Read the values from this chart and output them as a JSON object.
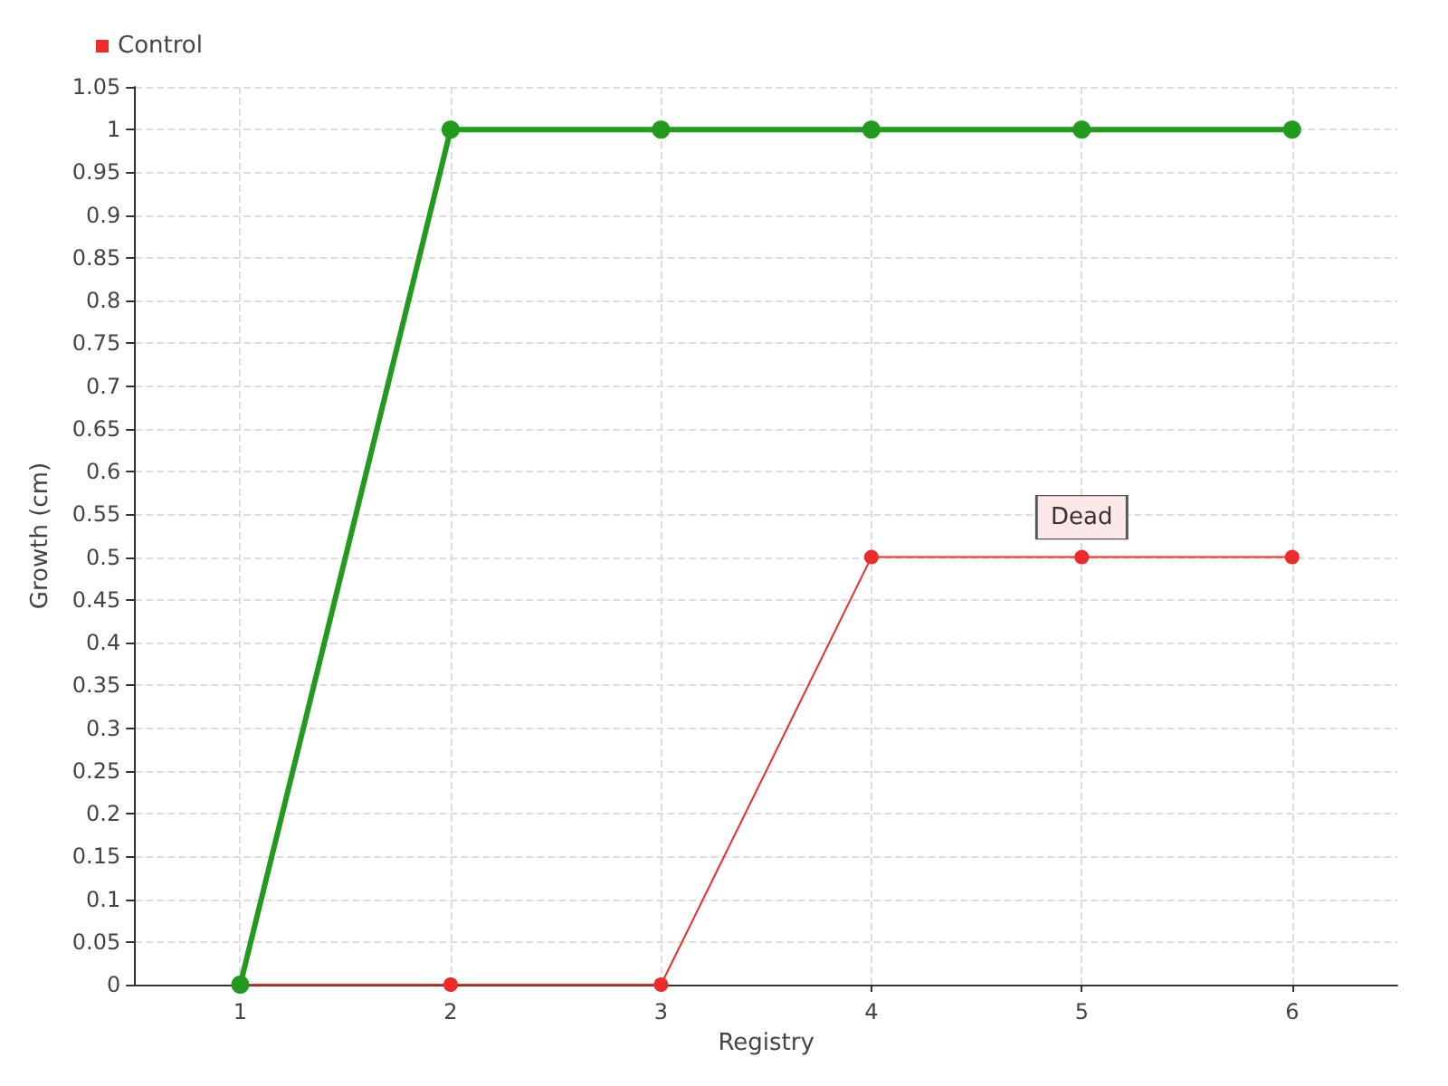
{
  "chart_data": {
    "type": "line",
    "xlabel": "Registry",
    "ylabel": "Growth (cm)",
    "x": [
      1,
      2,
      3,
      4,
      5,
      6
    ],
    "xlim": [
      0.5,
      6.5
    ],
    "xticks": [
      1,
      2,
      3,
      4,
      5,
      6
    ],
    "ylim": [
      0,
      1.05
    ],
    "yticks": [
      0,
      0.05,
      0.1,
      0.15,
      0.2,
      0.25,
      0.3,
      0.35,
      0.4,
      0.45,
      0.5,
      0.55,
      0.6,
      0.65,
      0.7,
      0.75,
      0.8,
      0.85,
      0.9,
      0.95,
      1,
      1.05
    ],
    "series": [
      {
        "color": "#229a1e",
        "values": [
          0,
          1,
          1,
          1,
          1,
          1
        ]
      },
      {
        "name": "Control",
        "color": "#ee2a2a",
        "values": [
          0,
          0,
          0,
          0.5,
          0.5,
          0.5
        ]
      }
    ],
    "annotations": [
      {
        "text": "Dead",
        "x": 5,
        "y": 0.5
      }
    ],
    "grid": true,
    "legend": "top left",
    "marker": "circle",
    "line_style": "solid"
  }
}
